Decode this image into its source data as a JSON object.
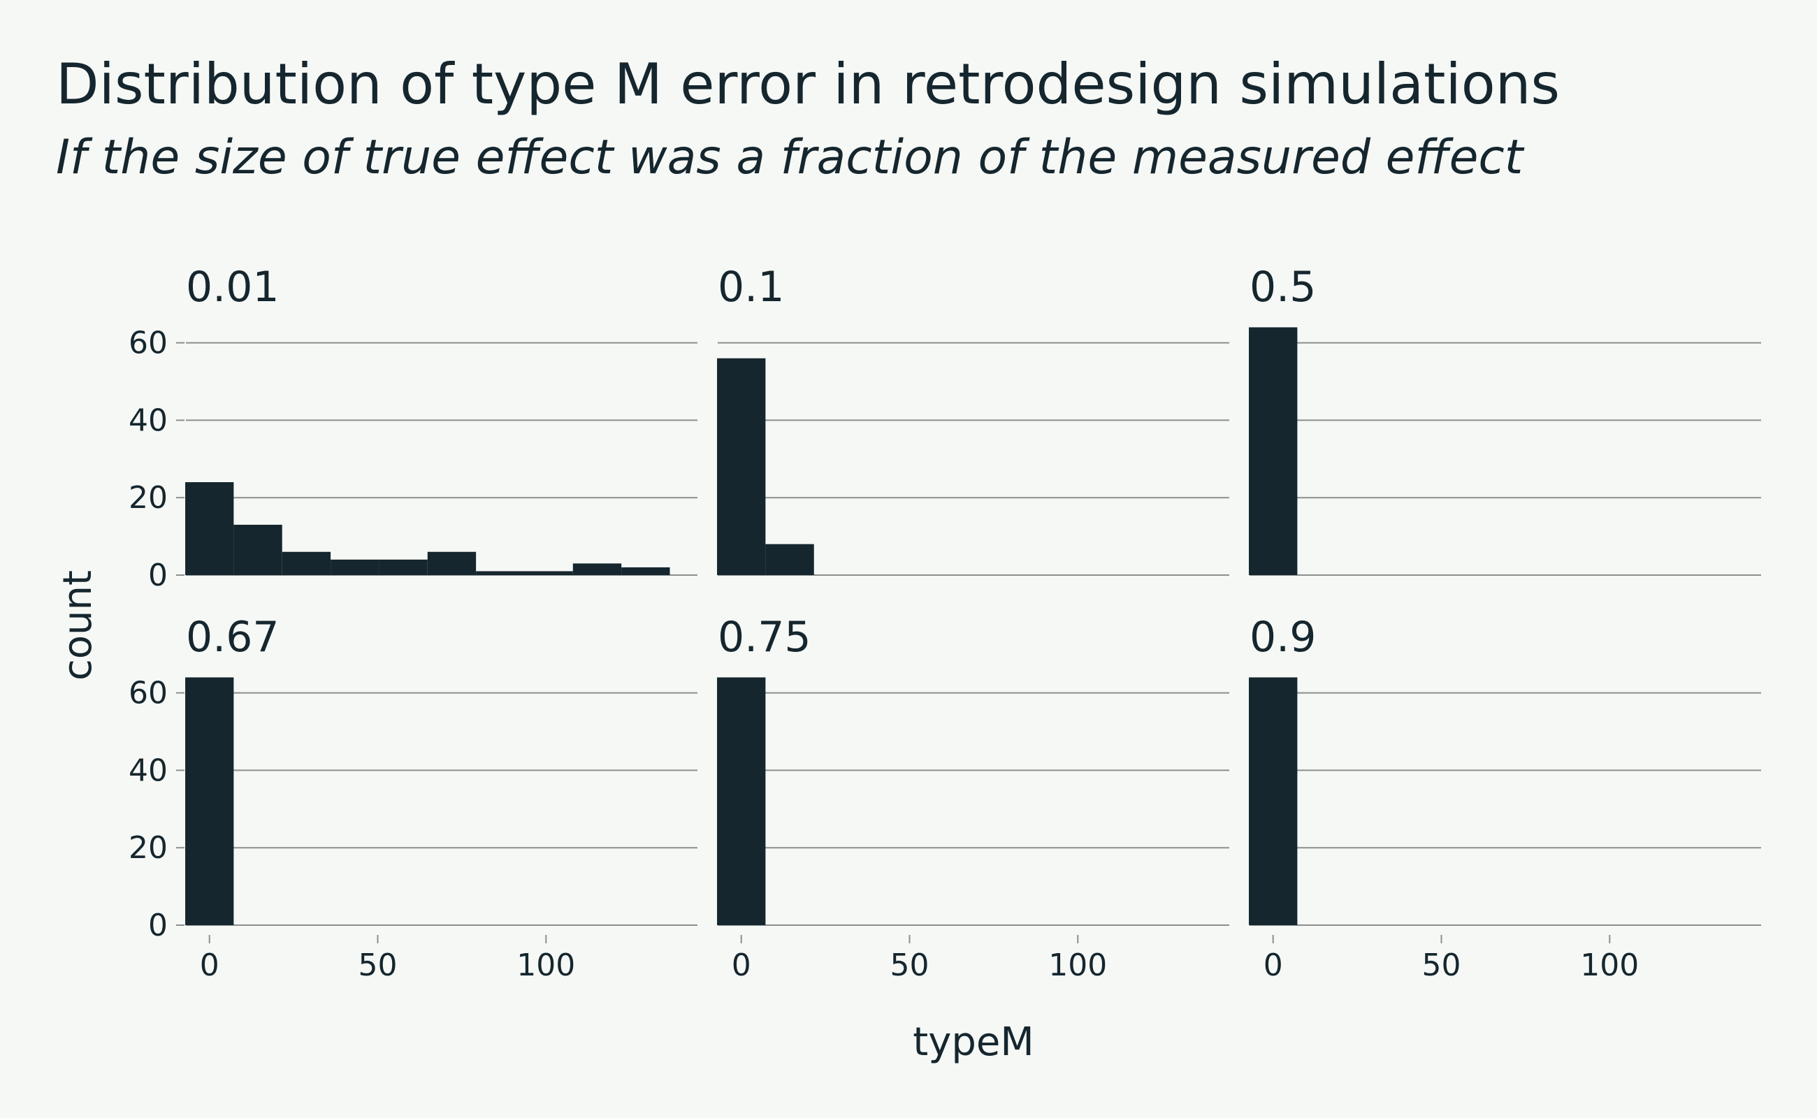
{
  "chart_data": {
    "type": "bar",
    "title": "Distribution of type M error in retrodesign simulations",
    "subtitle": "If the size of true effect was a fraction of the measured effect",
    "xlabel": "typeM",
    "ylabel": "count",
    "xlim": [
      -7,
      145
    ],
    "ylim": [
      0,
      68
    ],
    "x_ticks": [
      0,
      50,
      100
    ],
    "y_ticks": [
      0,
      20,
      40,
      60
    ],
    "bin_edges": [
      -7.2,
      7.2,
      21.6,
      36.0,
      50.4,
      64.8,
      79.2,
      93.6,
      108.0,
      122.4,
      136.8
    ],
    "grid": true,
    "layout": "3 columns x 2 rows",
    "facets": [
      {
        "label": "0.01",
        "counts": [
          24,
          13,
          6,
          4,
          4,
          6,
          1,
          1,
          3,
          2
        ]
      },
      {
        "label": "0.1",
        "counts": [
          56,
          8,
          0,
          0,
          0,
          0,
          0,
          0,
          0,
          0
        ]
      },
      {
        "label": "0.5",
        "counts": [
          64,
          0,
          0,
          0,
          0,
          0,
          0,
          0,
          0,
          0
        ]
      },
      {
        "label": "0.67",
        "counts": [
          64,
          0,
          0,
          0,
          0,
          0,
          0,
          0,
          0,
          0
        ]
      },
      {
        "label": "0.75",
        "counts": [
          64,
          0,
          0,
          0,
          0,
          0,
          0,
          0,
          0,
          0
        ]
      },
      {
        "label": "0.9",
        "counts": [
          64,
          0,
          0,
          0,
          0,
          0,
          0,
          0,
          0,
          0
        ]
      }
    ]
  }
}
